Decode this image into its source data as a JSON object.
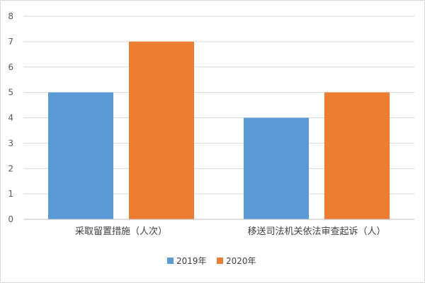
{
  "chart_data": {
    "type": "bar",
    "categories": [
      "采取留置措施（人次）",
      "移送司法机关依法审查起诉（人）"
    ],
    "series": [
      {
        "name": "2019年",
        "values": [
          5,
          4
        ],
        "color": "#5b9bd5"
      },
      {
        "name": "2020年",
        "values": [
          7,
          5
        ],
        "color": "#ed7d31"
      }
    ],
    "ylim": [
      0,
      8
    ],
    "yticks": [
      0,
      1,
      2,
      3,
      4,
      5,
      6,
      7,
      8
    ],
    "grid": true,
    "legend_position": "bottom",
    "gridline_color": "#d9d9d9",
    "axis_color": "#bfbfbf"
  }
}
